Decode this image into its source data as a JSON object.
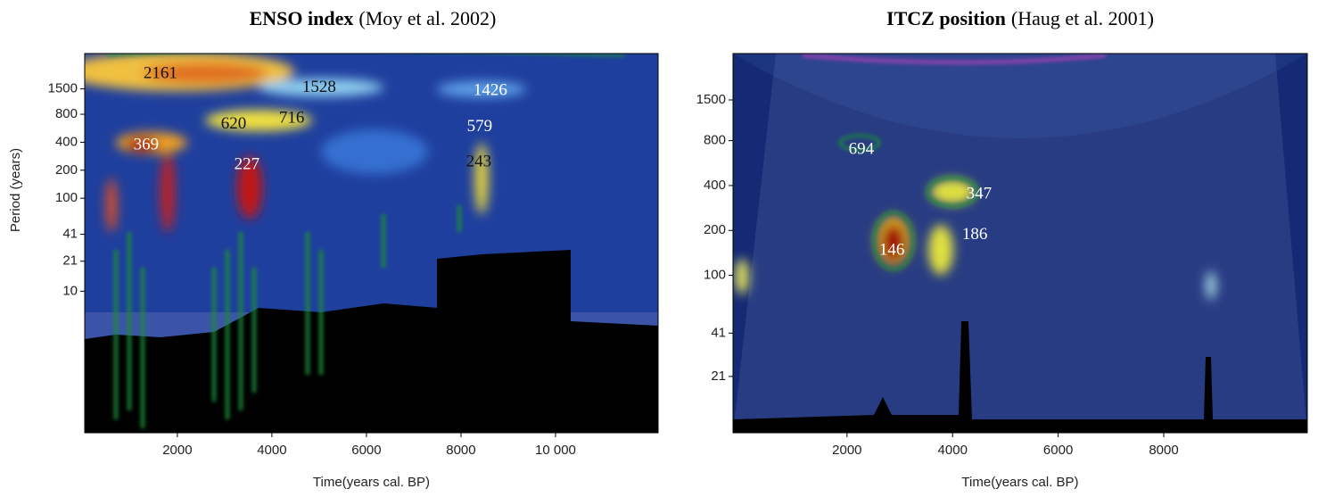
{
  "chart_data": [
    {
      "type": "wavelet",
      "title": "ENSO index",
      "source": "(Moy et al. 2002)",
      "x_label": "Time(years cal. BP)",
      "y_label": "Period (years)",
      "log_y": true,
      "xlim": [
        40,
        12170
      ],
      "ylim": [
        0.3,
        3600
      ],
      "xticks": [
        2000,
        4000,
        6000,
        8000,
        {
          "value": 10000,
          "label": "10 000"
        }
      ],
      "yticks": [
        10,
        21,
        41,
        100,
        200,
        400,
        800,
        1500
      ],
      "annotations": [
        {
          "period": 2161,
          "x": 1640
        },
        {
          "period": 1528,
          "x": 5000
        },
        {
          "period": 1426,
          "x": 8620
        },
        {
          "period": 620,
          "x": 3190
        },
        {
          "period": 716,
          "x": 4420
        },
        {
          "period": 369,
          "x": 1340
        },
        {
          "period": 227,
          "x": 3470
        },
        {
          "period": 579,
          "x": 8395
        },
        {
          "period": 243,
          "x": 8375
        }
      ]
    },
    {
      "type": "wavelet",
      "title": "ITCZ position",
      "source": "(Haug et al. 2001)",
      "x_label": "Time(years cal. BP)",
      "log_y": true,
      "xlim": [
        -160,
        10720
      ],
      "ylim": [
        8.8,
        3070
      ],
      "xticks": [
        2000,
        4000,
        6000,
        8000
      ],
      "yticks": [
        21,
        41,
        100,
        200,
        400,
        800,
        1500
      ],
      "annotations": [
        {
          "period": 694,
          "x": 2270
        },
        {
          "period": 347,
          "x": 4500
        },
        {
          "period": 146,
          "x": 2850
        },
        {
          "period": 186,
          "x": 4420
        }
      ]
    }
  ]
}
